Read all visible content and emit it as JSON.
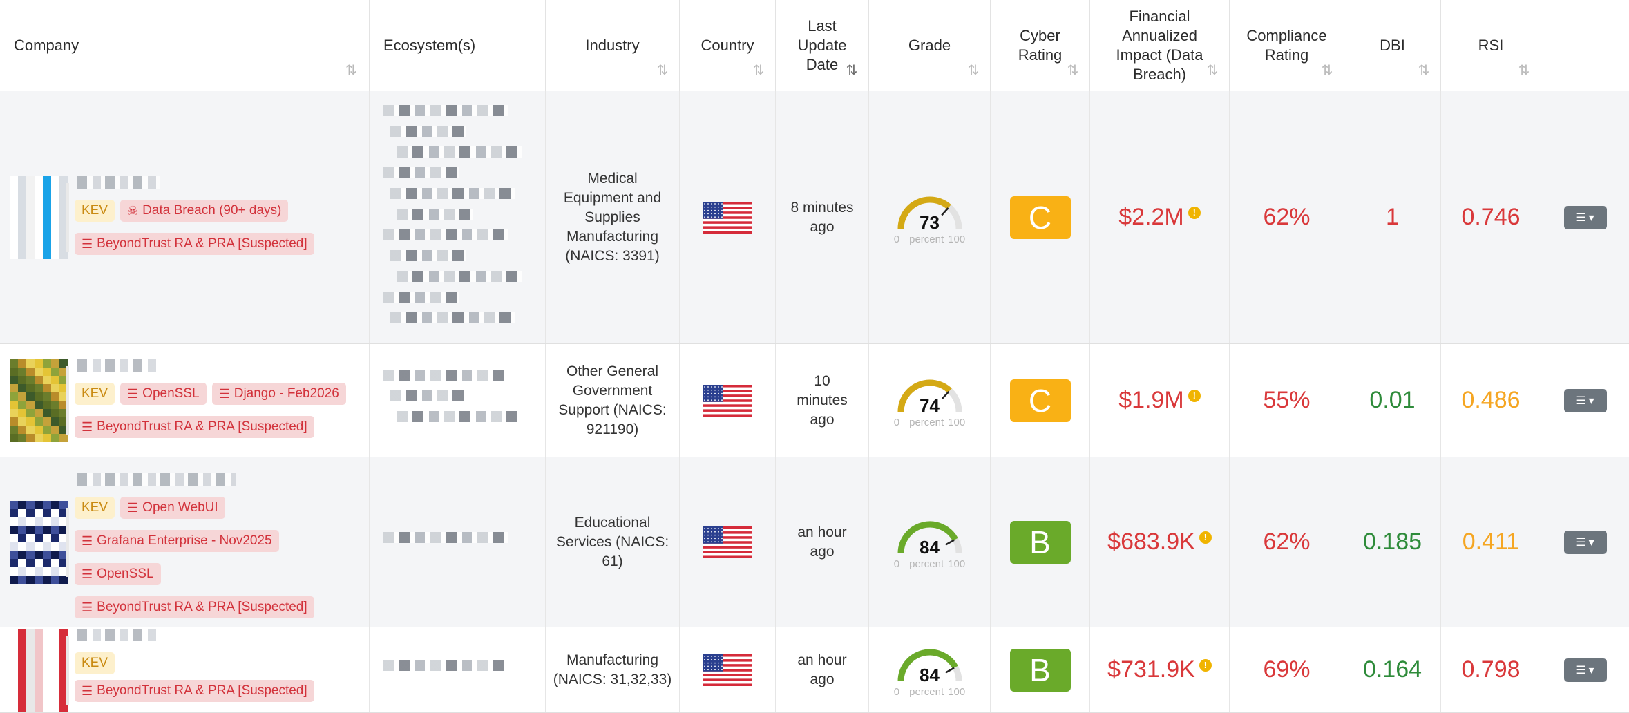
{
  "headers": {
    "company": "Company",
    "ecosystems": "Ecosystem(s)",
    "industry": "Industry",
    "country": "Country",
    "last_update": "Last Update Date",
    "grade": "Grade",
    "cyber_rating": "Cyber Rating",
    "financial_impact": "Financial Annualized Impact (Data Breach)",
    "compliance": "Compliance Rating",
    "dbi": "DBI",
    "rsi": "RSI"
  },
  "sort_icon": "sort-arrows-icon",
  "gauge_range": {
    "min": "0",
    "unit": "percent",
    "max": "100"
  },
  "colors": {
    "kev_bg": "#fdf0cc",
    "kev_text": "#c98a11",
    "tag_bg": "#f6d6d7",
    "tag_text": "#d2323b",
    "grade_c": "#f9b115",
    "grade_b": "#6aaa2a",
    "red": "#d9383a",
    "green": "#2e8b3a",
    "orange": "#f5a623",
    "action": "#6c757d"
  },
  "rows": [
    {
      "tags": [
        {
          "label": "KEV",
          "kind": "kev",
          "icon": ""
        },
        {
          "label": "Data Breach (90+ days)",
          "kind": "red",
          "icon": "skull-icon"
        },
        {
          "label": "BeyondTrust RA & PRA [Suspected]",
          "kind": "red",
          "icon": "list-icon"
        }
      ],
      "industry": "Medical Equipment and Supplies Manufacturing (NAICS: 3391)",
      "country": "United States",
      "last_update": "8 minutes ago",
      "grade": 73,
      "cyber_rating": "C",
      "financial": "$2.2M",
      "compliance": "62%",
      "dbi": "1",
      "dbi_color": "red",
      "rsi": "0.746",
      "rsi_color": "red"
    },
    {
      "tags": [
        {
          "label": "KEV",
          "kind": "kev",
          "icon": ""
        },
        {
          "label": "OpenSSL",
          "kind": "red",
          "icon": "list-icon"
        },
        {
          "label": "Django - Feb2026",
          "kind": "red",
          "icon": "list-icon"
        },
        {
          "label": "BeyondTrust RA & PRA [Suspected]",
          "kind": "red",
          "icon": "list-icon"
        }
      ],
      "industry": "Other General Government Support (NAICS: 921190)",
      "country": "United States",
      "last_update": "10 minutes ago",
      "grade": 74,
      "cyber_rating": "C",
      "financial": "$1.9M",
      "compliance": "55%",
      "dbi": "0.01",
      "dbi_color": "green",
      "rsi": "0.486",
      "rsi_color": "orange"
    },
    {
      "tags": [
        {
          "label": "KEV",
          "kind": "kev",
          "icon": ""
        },
        {
          "label": "Open WebUI",
          "kind": "red",
          "icon": "list-icon"
        },
        {
          "label": "Grafana Enterprise - Nov2025",
          "kind": "red",
          "icon": "list-icon"
        },
        {
          "label": "OpenSSL",
          "kind": "red",
          "icon": "list-icon"
        },
        {
          "label": "BeyondTrust RA & PRA [Suspected]",
          "kind": "red",
          "icon": "list-icon"
        }
      ],
      "industry": "Educational Services (NAICS: 61)",
      "country": "United States",
      "last_update": "an hour ago",
      "grade": 84,
      "cyber_rating": "B",
      "financial": "$683.9K",
      "compliance": "62%",
      "dbi": "0.185",
      "dbi_color": "green",
      "rsi": "0.411",
      "rsi_color": "orange"
    },
    {
      "tags": [
        {
          "label": "KEV",
          "kind": "kev",
          "icon": ""
        },
        {
          "label": "BeyondTrust RA & PRA [Suspected]",
          "kind": "red",
          "icon": "list-icon"
        }
      ],
      "industry": "Manufacturing (NAICS: 31,32,33)",
      "country": "United States",
      "last_update": "an hour ago",
      "grade": 84,
      "cyber_rating": "B",
      "financial": "$731.9K",
      "compliance": "69%",
      "dbi": "0.164",
      "dbi_color": "green",
      "rsi": "0.798",
      "rsi_color": "red"
    }
  ]
}
